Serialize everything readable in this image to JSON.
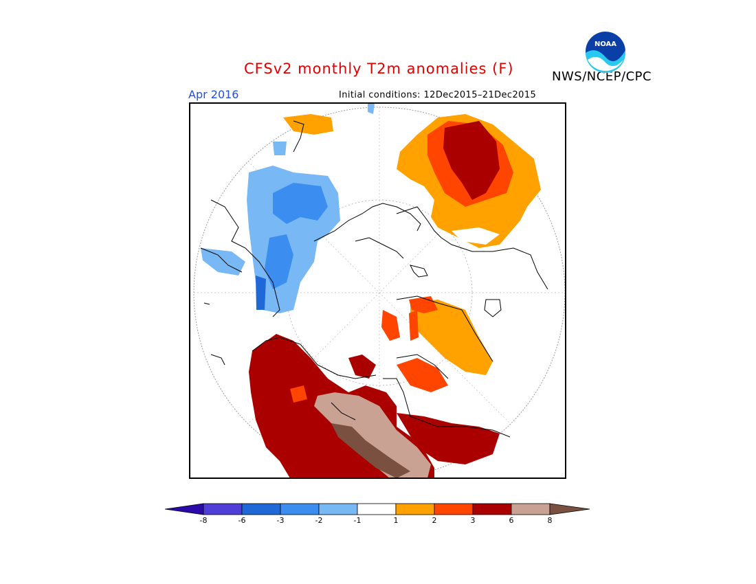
{
  "header": {
    "title": "CFSv2 monthly T2m anomalies (F)",
    "agency": "NWS/NCEP/CPC",
    "month": "Apr 2016",
    "initial_conditions": "Initial conditions: 12Dec2015–21Dec2015",
    "logo_text": "NOAA"
  },
  "colorbar": {
    "colors": [
      "#2a0aa8",
      "#4f3fd8",
      "#1f68d8",
      "#3b8ef0",
      "#78b8f5",
      "#ffffff",
      "#ffa200",
      "#ff4500",
      "#ab0000",
      "#c9a294",
      "#7a5140"
    ],
    "labels": [
      "-8",
      "-6",
      "-3",
      "-2",
      "-1",
      "1",
      "2",
      "3",
      "6",
      "8"
    ]
  }
}
